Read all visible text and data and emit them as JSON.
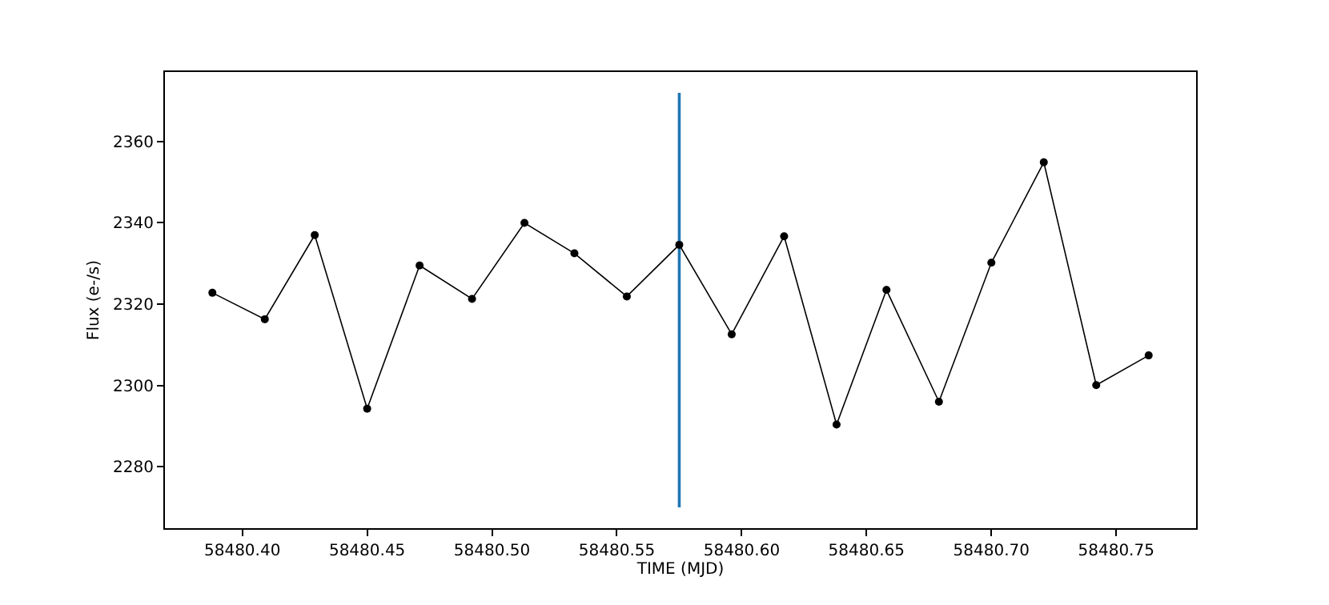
{
  "chart_data": {
    "type": "line",
    "xlabel": "TIME (MJD)",
    "ylabel": "Flux (e-/s)",
    "xlim": [
      58480.369,
      58480.782
    ],
    "ylim": [
      2264.9,
      2377.1
    ],
    "xticks": [
      {
        "value": 58480.4,
        "label": "58480.40"
      },
      {
        "value": 58480.45,
        "label": "58480.45"
      },
      {
        "value": 58480.5,
        "label": "58480.50"
      },
      {
        "value": 58480.55,
        "label": "58480.55"
      },
      {
        "value": 58480.6,
        "label": "58480.60"
      },
      {
        "value": 58480.65,
        "label": "58480.65"
      },
      {
        "value": 58480.7,
        "label": "58480.70"
      },
      {
        "value": 58480.75,
        "label": "58480.75"
      }
    ],
    "yticks": [
      2280,
      2300,
      2320,
      2340,
      2360
    ],
    "series": [
      {
        "color": "#000000",
        "marker": "circle",
        "line_style": "solid",
        "x": [
          58480.388,
          58480.409,
          58480.429,
          58480.45,
          58480.471,
          58480.492,
          58480.513,
          58480.533,
          58480.554,
          58480.575,
          58480.596,
          58480.617,
          58480.638,
          58480.658,
          58480.679,
          58480.7,
          58480.721,
          58480.742,
          58480.763
        ],
        "values": [
          2322.8,
          2316.3,
          2337.0,
          2294.3,
          2329.5,
          2321.3,
          2340.0,
          2332.5,
          2321.9,
          2334.6,
          2312.6,
          2336.7,
          2290.4,
          2323.5,
          2296.0,
          2330.2,
          2354.9,
          2300.1,
          2307.4
        ]
      },
      {
        "type": "line",
        "color": "#1f77b4",
        "marker": "none",
        "line_style": "solid",
        "x": [
          58480.575,
          58480.575
        ],
        "values": [
          2270,
          2372
        ]
      }
    ]
  }
}
